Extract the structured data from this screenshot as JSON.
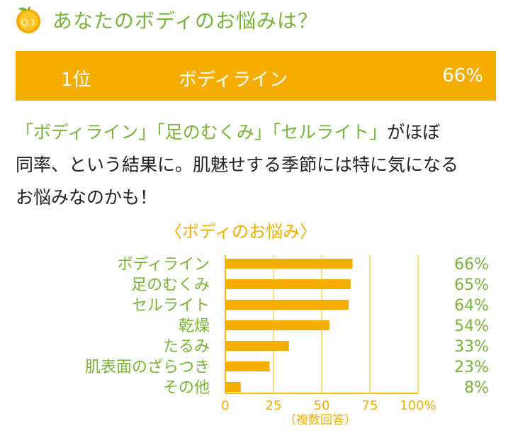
{
  "question": {
    "badge": "Q.1",
    "title": "あなたのボディのお悩みは？"
  },
  "rank": {
    "position": "1位",
    "item": "ボディライン",
    "percent": "66%"
  },
  "description": {
    "q1": "「ボディライン」",
    "q2": "「足のむくみ」",
    "q3": "「セルライト」",
    "rest1": "がほぼ",
    "line2": "同率、という結果に。肌魅せする季節には特に気になる",
    "line3": "お悩みなのかも！"
  },
  "colors": {
    "accent_green": "#7ab33a",
    "bar_orange": "#f5ae00",
    "axis": "#f0c200"
  },
  "chart_data": {
    "type": "bar",
    "orientation": "horizontal",
    "title": "〈ボディのお悩み〉",
    "categories": [
      "ボディライン",
      "足のむくみ",
      "セルライト",
      "乾燥",
      "たるみ",
      "肌表面のざらつき",
      "その他"
    ],
    "values": [
      66,
      65,
      64,
      54,
      33,
      23,
      8
    ],
    "value_labels": [
      "66%",
      "65%",
      "64%",
      "54%",
      "33%",
      "23%",
      "8%"
    ],
    "xlim": [
      0,
      100
    ],
    "xticks": [
      "0",
      "25",
      "50",
      "75",
      "100%"
    ],
    "xlabel": "（複数回答）",
    "grid": true
  }
}
